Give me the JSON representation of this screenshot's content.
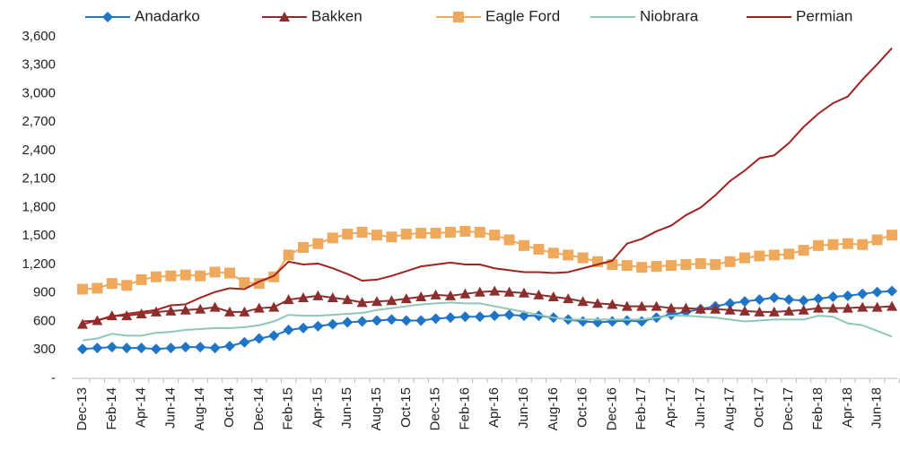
{
  "chart_data": {
    "type": "line",
    "categories": [
      "Dec-13",
      null,
      "Feb-14",
      null,
      "Apr-14",
      null,
      "Jun-14",
      null,
      "Aug-14",
      null,
      "Oct-14",
      null,
      "Dec-14",
      null,
      "Feb-15",
      null,
      "Apr-15",
      null,
      "Jun-15",
      null,
      "Aug-15",
      null,
      "Oct-15",
      null,
      "Dec-15",
      null,
      "Feb-16",
      null,
      "Apr-16",
      null,
      "Jun-16",
      null,
      "Aug-16",
      null,
      "Oct-16",
      null,
      "Dec-16",
      null,
      "Feb-17",
      null,
      "Apr-17",
      null,
      "Jun-17",
      null,
      "Aug-17",
      null,
      "Oct-17",
      null,
      "Dec-17",
      null,
      "Feb-18",
      null,
      "Apr-18",
      null,
      "Jun-18",
      null
    ],
    "series": [
      {
        "name": "Anadarko",
        "color": "#1f74c6",
        "marker": "diamond",
        "values": [
          310,
          320,
          330,
          320,
          320,
          310,
          320,
          330,
          330,
          320,
          340,
          380,
          420,
          450,
          510,
          530,
          550,
          570,
          590,
          600,
          610,
          620,
          610,
          610,
          630,
          640,
          650,
          650,
          660,
          670,
          660,
          660,
          640,
          620,
          600,
          590,
          600,
          610,
          600,
          640,
          670,
          700,
          730,
          760,
          790,
          810,
          830,
          850,
          830,
          820,
          840,
          860,
          870,
          890,
          910,
          920
        ]
      },
      {
        "name": "Bakken",
        "color": "#8b2e2e",
        "marker": "triangle",
        "values": [
          570,
          610,
          660,
          660,
          680,
          700,
          710,
          720,
          730,
          750,
          700,
          700,
          740,
          750,
          830,
          850,
          870,
          850,
          830,
          800,
          810,
          820,
          840,
          860,
          880,
          870,
          890,
          910,
          920,
          910,
          900,
          880,
          860,
          840,
          810,
          790,
          780,
          760,
          760,
          760,
          740,
          740,
          730,
          730,
          720,
          710,
          700,
          700,
          710,
          720,
          740,
          740,
          740,
          750,
          750,
          760
        ]
      },
      {
        "name": "Eagle Ford",
        "color": "#eea95c",
        "marker": "square",
        "values": [
          940,
          950,
          1000,
          980,
          1040,
          1070,
          1080,
          1090,
          1080,
          1120,
          1110,
          1010,
          1000,
          1070,
          1300,
          1380,
          1420,
          1480,
          1520,
          1540,
          1510,
          1490,
          1520,
          1530,
          1530,
          1540,
          1550,
          1540,
          1510,
          1460,
          1400,
          1360,
          1320,
          1300,
          1270,
          1230,
          1200,
          1190,
          1170,
          1180,
          1190,
          1200,
          1210,
          1200,
          1230,
          1270,
          1290,
          1300,
          1310,
          1350,
          1400,
          1410,
          1420,
          1410,
          1460,
          1510
        ]
      },
      {
        "name": "Niobrara",
        "color": "#8fc7b8",
        "marker": "none",
        "values": [
          400,
          420,
          470,
          450,
          450,
          480,
          490,
          510,
          520,
          530,
          530,
          540,
          560,
          600,
          670,
          660,
          660,
          670,
          680,
          690,
          720,
          740,
          760,
          780,
          790,
          800,
          790,
          790,
          760,
          730,
          700,
          670,
          640,
          620,
          620,
          620,
          620,
          620,
          620,
          640,
          660,
          660,
          650,
          640,
          620,
          600,
          610,
          620,
          620,
          620,
          660,
          650,
          580,
          560,
          500,
          440
        ]
      },
      {
        "name": "Permian",
        "color": "#a3211f",
        "marker": "none",
        "values": [
          600,
          610,
          650,
          680,
          700,
          720,
          770,
          780,
          850,
          910,
          950,
          940,
          1020,
          1080,
          1230,
          1200,
          1210,
          1160,
          1100,
          1030,
          1040,
          1080,
          1130,
          1180,
          1200,
          1220,
          1200,
          1200,
          1160,
          1140,
          1120,
          1120,
          1110,
          1120,
          1160,
          1200,
          1240,
          1420,
          1470,
          1550,
          1610,
          1720,
          1800,
          1930,
          2080,
          2190,
          2320,
          2350,
          2480,
          2650,
          2790,
          2900,
          2970,
          3150,
          3310,
          3480
        ]
      }
    ],
    "ylim": [
      0,
      3600
    ],
    "yticks": [
      {
        "value": 0,
        "label": "-"
      },
      300,
      600,
      900,
      {
        "value": 1200,
        "label": "1,200"
      },
      {
        "value": 1500,
        "label": "1,500"
      },
      {
        "value": 1800,
        "label": "1,800"
      },
      {
        "value": 2100,
        "label": "2,100"
      },
      {
        "value": 2400,
        "label": "2,400"
      },
      {
        "value": 2700,
        "label": "2,700"
      },
      {
        "value": 3000,
        "label": "3,000"
      },
      {
        "value": 3300,
        "label": "3,300"
      },
      {
        "value": 3600,
        "label": "3,600"
      }
    ],
    "legend": "top"
  }
}
